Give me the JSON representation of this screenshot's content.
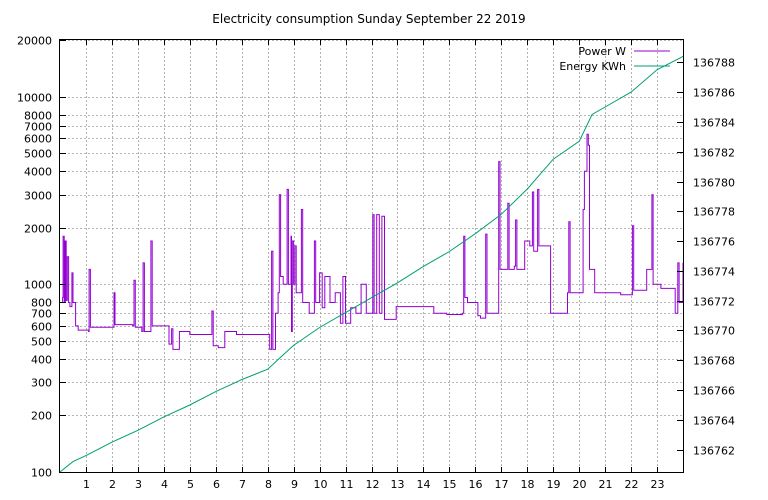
{
  "chart_data": {
    "type": "line",
    "title": "Electricity consumption Sunday September 22 2019",
    "xlabel": "",
    "ylabel": "",
    "xlim": [
      0,
      24
    ],
    "x_ticks": [
      1,
      2,
      3,
      4,
      5,
      6,
      7,
      8,
      9,
      10,
      11,
      12,
      13,
      14,
      15,
      16,
      17,
      18,
      19,
      20,
      21,
      22,
      23
    ],
    "y_left": {
      "scale": "log",
      "range": [
        100,
        20000
      ],
      "ticks": [
        100,
        200,
        300,
        400,
        500,
        600,
        700,
        800,
        1000,
        2000,
        3000,
        4000,
        5000,
        6000,
        7000,
        8000,
        10000,
        20000
      ]
    },
    "y_right": {
      "scale": "linear",
      "range": [
        136760.5,
        136789.5
      ],
      "ticks": [
        136762,
        136764,
        136766,
        136768,
        136770,
        136772,
        136774,
        136776,
        136778,
        136780,
        136782,
        136784,
        136786,
        136788
      ]
    },
    "grid": true,
    "legend_position": "top-right",
    "series": [
      {
        "name": "Power W",
        "axis": "left",
        "color": "#9400d3",
        "style": "steps",
        "points": [
          [
            0.0,
            800
          ],
          [
            0.1,
            850
          ],
          [
            0.12,
            1800
          ],
          [
            0.16,
            800
          ],
          [
            0.2,
            1700
          ],
          [
            0.24,
            820
          ],
          [
            0.28,
            1400
          ],
          [
            0.33,
            800
          ],
          [
            0.38,
            760
          ],
          [
            0.46,
            1150
          ],
          [
            0.5,
            800
          ],
          [
            0.6,
            600
          ],
          [
            0.7,
            570
          ],
          [
            1.1,
            560
          ],
          [
            1.12,
            1200
          ],
          [
            1.17,
            590
          ],
          [
            1.6,
            590
          ],
          [
            2.05,
            590
          ],
          [
            2.08,
            900
          ],
          [
            2.12,
            610
          ],
          [
            2.8,
            600
          ],
          [
            2.85,
            1050
          ],
          [
            2.9,
            590
          ],
          [
            3.15,
            560
          ],
          [
            3.2,
            1300
          ],
          [
            3.25,
            560
          ],
          [
            3.45,
            560
          ],
          [
            3.5,
            1700
          ],
          [
            3.55,
            600
          ],
          [
            4.0,
            600
          ],
          [
            4.2,
            480
          ],
          [
            4.3,
            580
          ],
          [
            4.35,
            450
          ],
          [
            4.55,
            450
          ],
          [
            4.6,
            560
          ],
          [
            5.0,
            540
          ],
          [
            5.5,
            540
          ],
          [
            5.8,
            540
          ],
          [
            5.85,
            720
          ],
          [
            5.9,
            470
          ],
          [
            6.1,
            460
          ],
          [
            6.35,
            560
          ],
          [
            6.8,
            540
          ],
          [
            7.4,
            540
          ],
          [
            8.0,
            540
          ],
          [
            8.08,
            450
          ],
          [
            8.15,
            1500
          ],
          [
            8.2,
            450
          ],
          [
            8.3,
            700
          ],
          [
            8.4,
            900
          ],
          [
            8.45,
            3000
          ],
          [
            8.5,
            1100
          ],
          [
            8.6,
            1000
          ],
          [
            8.75,
            3200
          ],
          [
            8.8,
            1000
          ],
          [
            8.9,
            1800
          ],
          [
            8.92,
            560
          ],
          [
            8.95,
            1700
          ],
          [
            9.0,
            1000
          ],
          [
            9.05,
            1600
          ],
          [
            9.1,
            900
          ],
          [
            9.3,
            2500
          ],
          [
            9.35,
            800
          ],
          [
            9.6,
            700
          ],
          [
            9.8,
            1700
          ],
          [
            9.85,
            800
          ],
          [
            10.0,
            1150
          ],
          [
            10.1,
            750
          ],
          [
            10.2,
            1100
          ],
          [
            10.4,
            800
          ],
          [
            10.6,
            900
          ],
          [
            10.8,
            620
          ],
          [
            10.9,
            1100
          ],
          [
            11.0,
            620
          ],
          [
            11.2,
            750
          ],
          [
            11.4,
            700
          ],
          [
            11.6,
            1000
          ],
          [
            11.8,
            700
          ],
          [
            12.0,
            700
          ],
          [
            12.05,
            2350
          ],
          [
            12.1,
            700
          ],
          [
            12.2,
            2350
          ],
          [
            12.3,
            700
          ],
          [
            12.4,
            2300
          ],
          [
            12.5,
            650
          ],
          [
            12.8,
            650
          ],
          [
            12.95,
            760
          ],
          [
            13.5,
            760
          ],
          [
            14.0,
            760
          ],
          [
            14.35,
            760
          ],
          [
            14.4,
            700
          ],
          [
            14.9,
            690
          ],
          [
            15.5,
            700
          ],
          [
            15.55,
            1800
          ],
          [
            15.6,
            850
          ],
          [
            15.7,
            800
          ],
          [
            16.0,
            800
          ],
          [
            16.1,
            680
          ],
          [
            16.2,
            660
          ],
          [
            16.4,
            1850
          ],
          [
            16.45,
            700
          ],
          [
            16.8,
            700
          ],
          [
            16.9,
            4500
          ],
          [
            16.95,
            1200
          ],
          [
            17.2,
            1200
          ],
          [
            17.25,
            2700
          ],
          [
            17.3,
            1200
          ],
          [
            17.5,
            1250
          ],
          [
            17.55,
            2200
          ],
          [
            17.6,
            1200
          ],
          [
            17.8,
            1200
          ],
          [
            17.9,
            1700
          ],
          [
            18.1,
            1600
          ],
          [
            18.2,
            3100
          ],
          [
            18.25,
            1500
          ],
          [
            18.4,
            3200
          ],
          [
            18.45,
            1600
          ],
          [
            18.7,
            1600
          ],
          [
            18.85,
            1600
          ],
          [
            18.9,
            700
          ],
          [
            19.2,
            700
          ],
          [
            19.55,
            900
          ],
          [
            19.6,
            2150
          ],
          [
            19.65,
            900
          ],
          [
            20.0,
            900
          ],
          [
            20.15,
            2500
          ],
          [
            20.2,
            4000
          ],
          [
            20.3,
            6300
          ],
          [
            20.35,
            5500
          ],
          [
            20.4,
            1200
          ],
          [
            20.6,
            900
          ],
          [
            21.0,
            900
          ],
          [
            21.6,
            880
          ],
          [
            22.05,
            2050
          ],
          [
            22.1,
            930
          ],
          [
            22.4,
            930
          ],
          [
            22.6,
            1200
          ],
          [
            22.8,
            3000
          ],
          [
            22.85,
            1000
          ],
          [
            23.0,
            1000
          ],
          [
            23.15,
            950
          ],
          [
            23.5,
            950
          ],
          [
            23.7,
            700
          ],
          [
            23.8,
            1300
          ],
          [
            23.85,
            800
          ],
          [
            24.0,
            1300
          ]
        ]
      },
      {
        "name": "Energy KWh",
        "axis": "right",
        "color": "#009e73",
        "style": "line",
        "points": [
          [
            0.0,
            136760.5
          ],
          [
            0.5,
            136761.2
          ],
          [
            1.0,
            136761.6
          ],
          [
            2.0,
            136762.5
          ],
          [
            3.0,
            136763.3
          ],
          [
            4.0,
            136764.2
          ],
          [
            5.0,
            136765.0
          ],
          [
            6.0,
            136765.9
          ],
          [
            7.0,
            136766.7
          ],
          [
            8.0,
            136767.4
          ],
          [
            8.5,
            136768.2
          ],
          [
            9.0,
            136769.0
          ],
          [
            10.0,
            136770.2
          ],
          [
            11.0,
            136771.2
          ],
          [
            12.0,
            136772.2
          ],
          [
            13.0,
            136773.2
          ],
          [
            14.0,
            136774.3
          ],
          [
            15.0,
            136775.3
          ],
          [
            16.0,
            136776.5
          ],
          [
            17.0,
            136777.8
          ],
          [
            18.0,
            136779.5
          ],
          [
            19.0,
            136781.5
          ],
          [
            20.0,
            136782.7
          ],
          [
            20.5,
            136784.5
          ],
          [
            21.0,
            136785.0
          ],
          [
            22.0,
            136786.0
          ],
          [
            23.0,
            136787.5
          ],
          [
            24.0,
            136788.4
          ]
        ]
      }
    ]
  }
}
